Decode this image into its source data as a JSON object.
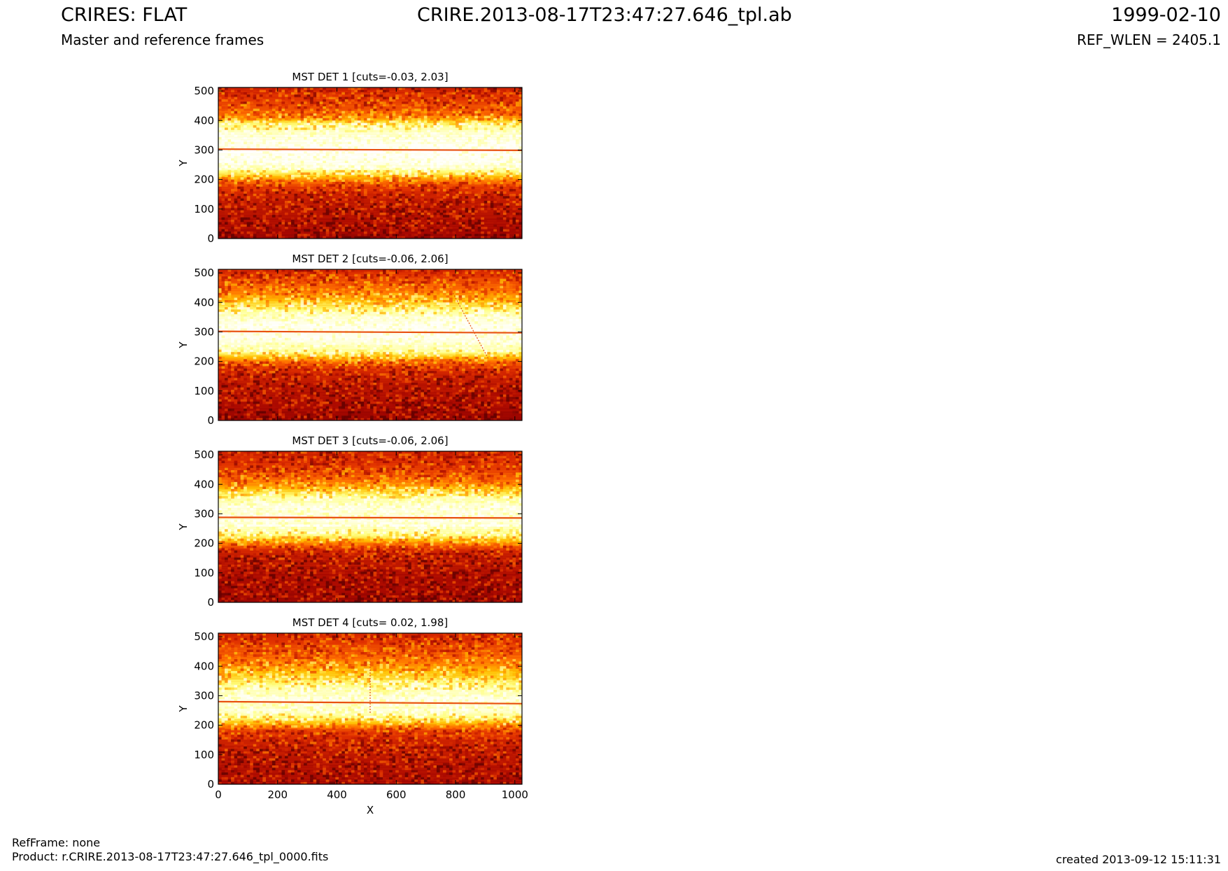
{
  "header": {
    "title": "CRIRES: FLAT",
    "subtitle": "Master and reference frames",
    "center_title": "CRIRE.2013-08-17T23:47:27.646_tpl.ab",
    "date": "1999-02-10",
    "ref_wlen": "REF_WLEN = 2405.1"
  },
  "footer": {
    "refframe": "RefFrame: none",
    "product": "Product: r.CRIRE.2013-08-17T23:47:27.646_tpl_0000.fits",
    "created": "created 2013-09-12 15:11:31"
  },
  "colors": {
    "cmap": [
      "#5a0000",
      "#a80800",
      "#e03000",
      "#ff7000",
      "#ffc000",
      "#ffff80",
      "#ffffff"
    ],
    "line": "#e85010"
  },
  "chart_data": [
    {
      "type": "heatmap",
      "title": "MST DET 1 [cuts=-0.03, 2.03]",
      "xlabel": "",
      "ylabel": "Y",
      "xlim": [
        0,
        1024
      ],
      "ylim": [
        0,
        512
      ],
      "xticks": [],
      "yticks": [
        0,
        100,
        200,
        300,
        400,
        500
      ],
      "cuts": [
        -0.03,
        2.03
      ],
      "profile": [
        [
          0,
          0.12
        ],
        [
          40,
          0.18
        ],
        [
          100,
          0.22
        ],
        [
          150,
          0.28
        ],
        [
          180,
          0.38
        ],
        [
          200,
          0.55
        ],
        [
          215,
          0.72
        ],
        [
          240,
          0.95
        ],
        [
          280,
          0.99
        ],
        [
          320,
          0.99
        ],
        [
          360,
          0.93
        ],
        [
          390,
          0.82
        ],
        [
          410,
          0.55
        ],
        [
          440,
          0.42
        ],
        [
          470,
          0.35
        ],
        [
          500,
          0.3
        ],
        [
          512,
          0.25
        ]
      ],
      "bright_rows": [
        {
          "y0": 303,
          "y1": 299
        }
      ],
      "extra_lines": []
    },
    {
      "type": "heatmap",
      "title": "MST DET 2 [cuts=-0.06, 2.06]",
      "xlabel": "",
      "ylabel": "Y",
      "xlim": [
        0,
        1024
      ],
      "ylim": [
        0,
        512
      ],
      "xticks": [],
      "yticks": [
        0,
        100,
        200,
        300,
        400,
        500
      ],
      "cuts": [
        -0.06,
        2.06
      ],
      "profile": [
        [
          0,
          0.14
        ],
        [
          60,
          0.18
        ],
        [
          120,
          0.22
        ],
        [
          170,
          0.3
        ],
        [
          195,
          0.45
        ],
        [
          210,
          0.62
        ],
        [
          235,
          0.88
        ],
        [
          270,
          0.97
        ],
        [
          330,
          0.98
        ],
        [
          370,
          0.88
        ],
        [
          400,
          0.7
        ],
        [
          430,
          0.55
        ],
        [
          460,
          0.45
        ],
        [
          490,
          0.36
        ],
        [
          512,
          0.3
        ]
      ],
      "bright_rows": [
        {
          "y0": 302,
          "y1": 297
        }
      ],
      "extra_lines": [
        [
          760,
          490,
          910,
          210
        ]
      ]
    },
    {
      "type": "heatmap",
      "title": "MST DET 3 [cuts=-0.06, 2.06]",
      "xlabel": "",
      "ylabel": "Y",
      "xlim": [
        0,
        1024
      ],
      "ylim": [
        0,
        512
      ],
      "xticks": [],
      "yticks": [
        0,
        100,
        200,
        300,
        400,
        500
      ],
      "cuts": [
        -0.06,
        2.06
      ],
      "profile": [
        [
          0,
          0.14
        ],
        [
          80,
          0.18
        ],
        [
          150,
          0.24
        ],
        [
          180,
          0.32
        ],
        [
          200,
          0.55
        ],
        [
          230,
          0.85
        ],
        [
          260,
          0.95
        ],
        [
          320,
          0.96
        ],
        [
          350,
          0.9
        ],
        [
          380,
          0.72
        ],
        [
          410,
          0.5
        ],
        [
          440,
          0.4
        ],
        [
          470,
          0.33
        ],
        [
          512,
          0.27
        ]
      ],
      "bright_rows": [
        {
          "y0": 288,
          "y1": 286
        }
      ],
      "extra_lines": []
    },
    {
      "type": "heatmap",
      "title": "MST DET 4 [cuts= 0.02, 1.98]",
      "xlabel": "X",
      "ylabel": "Y",
      "xlim": [
        0,
        1024
      ],
      "ylim": [
        0,
        512
      ],
      "xticks": [
        0,
        200,
        400,
        600,
        800,
        1000
      ],
      "yticks": [
        0,
        100,
        200,
        300,
        400,
        500
      ],
      "cuts": [
        0.02,
        1.98
      ],
      "profile": [
        [
          0,
          0.18
        ],
        [
          80,
          0.22
        ],
        [
          150,
          0.28
        ],
        [
          185,
          0.4
        ],
        [
          210,
          0.7
        ],
        [
          240,
          0.92
        ],
        [
          290,
          0.96
        ],
        [
          330,
          0.88
        ],
        [
          370,
          0.7
        ],
        [
          410,
          0.55
        ],
        [
          450,
          0.42
        ],
        [
          490,
          0.34
        ],
        [
          512,
          0.3
        ]
      ],
      "bright_rows": [
        {
          "y0": 280,
          "y1": 273
        }
      ],
      "extra_lines": [
        [
          512,
          512,
          512,
          240
        ]
      ]
    }
  ]
}
